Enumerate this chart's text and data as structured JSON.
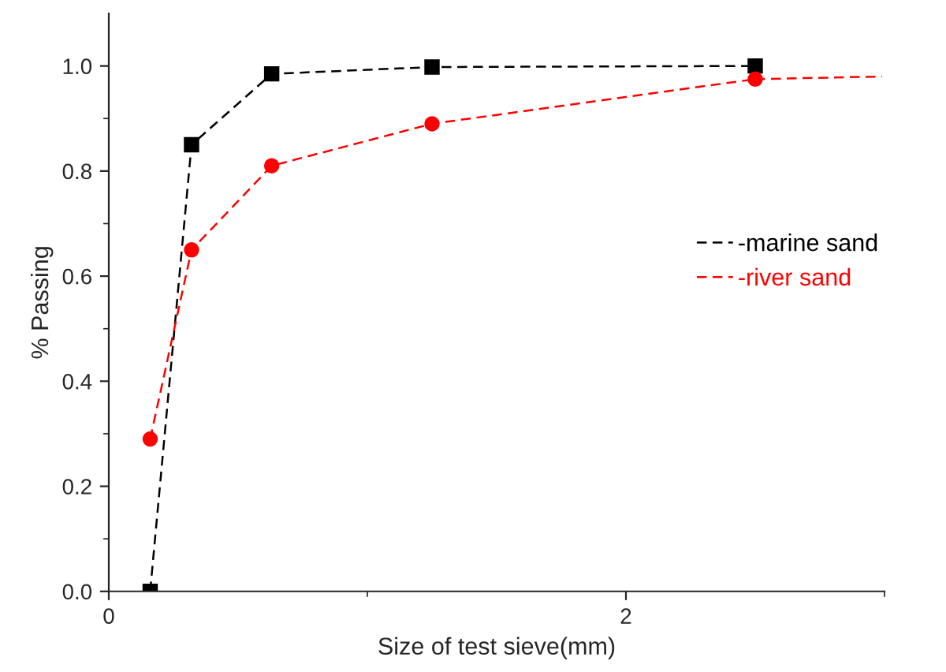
{
  "chart_data": {
    "type": "line",
    "xlabel": "Size of test sieve(mm)",
    "ylabel": "% Passing",
    "xlim": [
      0,
      3
    ],
    "xticks": [
      0,
      {
        "value": 1,
        "label": null
      },
      2,
      {
        "value": 3,
        "label": null
      }
    ],
    "ylim": [
      0,
      1.1
    ],
    "yticks": [
      "0.0",
      {
        "value": 0.1,
        "label": null
      },
      {
        "value": 0.2,
        "label": "0.2"
      },
      {
        "value": 0.3,
        "label": null
      },
      {
        "value": 0.4,
        "label": "0.4"
      },
      {
        "value": 0.5,
        "label": null
      },
      {
        "value": 0.6,
        "label": "0.6"
      },
      {
        "value": 0.7,
        "label": null
      },
      {
        "value": 0.8,
        "label": "0.8"
      },
      {
        "value": 0.9,
        "label": null
      },
      {
        "value": 1.0,
        "label": "1.0"
      }
    ],
    "line_style": "dashed",
    "legend": "right",
    "grid": false,
    "series": [
      {
        "name": "-marine sand",
        "color": "#000000",
        "marker": "square",
        "x": [
          0.16,
          0.32,
          0.63,
          1.25,
          2.5
        ],
        "values": [
          0,
          0.85,
          0.985,
          0.998,
          1.0
        ]
      },
      {
        "name": "-river sand",
        "color": "#ff0000",
        "marker": "circle",
        "x": [
          0.16,
          0.32,
          0.63,
          1.25,
          2.5
        ],
        "values": [
          0.29,
          0.65,
          0.81,
          0.89,
          0.975
        ]
      },
      {
        "color": "#ff0000",
        "marker": "none",
        "x": [
          2.5,
          2.99
        ],
        "values": [
          0.975,
          0.98
        ]
      }
    ]
  }
}
